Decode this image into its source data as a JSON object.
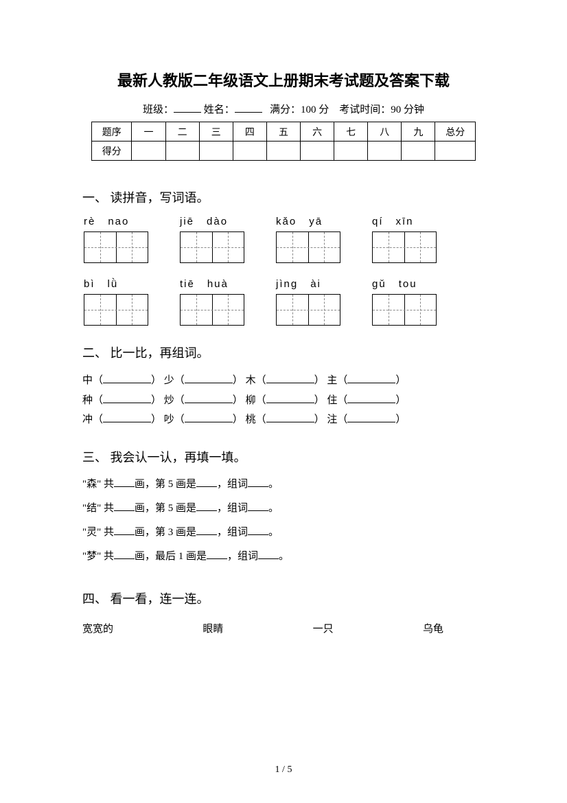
{
  "title": "最新人教版二年级语文上册期末考试题及答案下载",
  "info": {
    "class_label": "班级：",
    "name_label": "姓名：",
    "score_label": "满分：",
    "score_value": "100 分",
    "time_label": "考试时间：",
    "time_value": "90 分钟"
  },
  "score_table": {
    "row_label1": "题序",
    "row_label2": "得分",
    "cols": [
      "一",
      "二",
      "三",
      "四",
      "五",
      "六",
      "七",
      "八",
      "九"
    ],
    "total": "总分"
  },
  "section1": {
    "title": "一、 读拼音，写词语。",
    "row1": [
      [
        "rè",
        "nao"
      ],
      [
        "jiē",
        "dào"
      ],
      [
        "kǎo",
        "yā"
      ],
      [
        "qí",
        "xīn"
      ]
    ],
    "row2": [
      [
        "bì",
        "lǜ"
      ],
      [
        "tiē",
        "huà"
      ],
      [
        "jìng",
        "ài"
      ],
      [
        "gǔ",
        "tou"
      ]
    ]
  },
  "section2": {
    "title": "二、 比一比，再组词。",
    "rows": [
      [
        "中",
        "少",
        "木",
        "主"
      ],
      [
        "种",
        "炒",
        "柳",
        "住"
      ],
      [
        "冲",
        "吵",
        "桃",
        "注"
      ]
    ]
  },
  "section3": {
    "title": "三、 我会认一认，再填一填。",
    "lines": [
      {
        "char": "森",
        "mid": "画，第 5 画是",
        "end": "，组词"
      },
      {
        "char": "结",
        "mid": "画，第 5 画是",
        "end": "，组词"
      },
      {
        "char": "灵",
        "mid": "画，第 3 画是",
        "end": "，组词"
      },
      {
        "char": "梦",
        "mid": "画，最后 1 画是",
        "end": "，组词"
      }
    ],
    "prefix": "共",
    "suffix": "。"
  },
  "section4": {
    "title": "四、 看一看，连一连。",
    "items": [
      "宽宽的",
      "眼睛",
      "一只",
      "乌龟"
    ]
  },
  "page": {
    "current": "1",
    "sep": " / ",
    "total": "5"
  }
}
